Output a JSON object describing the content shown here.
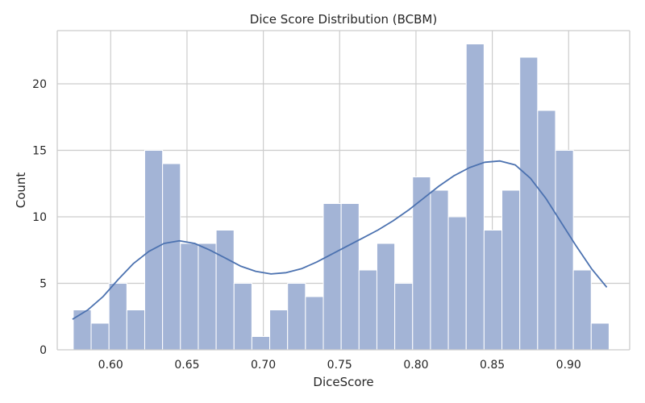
{
  "chart_data": {
    "type": "bar",
    "title": "Dice Score Distribution (BCBM)",
    "xlabel": "DiceScore",
    "ylabel": "Count",
    "xlim": [
      0.565,
      0.94
    ],
    "ylim": [
      0,
      24
    ],
    "xticks": [
      0.6,
      0.65,
      0.7,
      0.75,
      0.8,
      0.85,
      0.9
    ],
    "xtick_labels": [
      "0.60",
      "0.65",
      "0.70",
      "0.75",
      "0.80",
      "0.85",
      "0.90"
    ],
    "yticks": [
      0,
      5,
      10,
      15,
      20
    ],
    "ytick_labels": [
      "0",
      "5",
      "10",
      "15",
      "20"
    ],
    "grid": true,
    "bin_edges": [
      0.5755,
      0.5872,
      0.5989,
      0.6106,
      0.6223,
      0.634,
      0.6457,
      0.6574,
      0.6691,
      0.6808,
      0.6925,
      0.7042,
      0.7159,
      0.7276,
      0.7393,
      0.751,
      0.7627,
      0.7744,
      0.7861,
      0.7978,
      0.8095,
      0.8212,
      0.8329,
      0.8446,
      0.8563,
      0.868,
      0.8797,
      0.8914,
      0.9031,
      0.9148,
      0.9265
    ],
    "counts": [
      3,
      2,
      5,
      3,
      15,
      14,
      8,
      8,
      9,
      5,
      1,
      3,
      5,
      4,
      11,
      11,
      6,
      8,
      5,
      13,
      12,
      10,
      23,
      9,
      12,
      22,
      18,
      15,
      6,
      2
    ],
    "kde": {
      "x": [
        0.575,
        0.585,
        0.595,
        0.605,
        0.615,
        0.625,
        0.635,
        0.645,
        0.655,
        0.665,
        0.675,
        0.685,
        0.695,
        0.705,
        0.715,
        0.725,
        0.735,
        0.745,
        0.755,
        0.765,
        0.775,
        0.785,
        0.795,
        0.805,
        0.815,
        0.825,
        0.835,
        0.845,
        0.855,
        0.865,
        0.875,
        0.885,
        0.895,
        0.905,
        0.915,
        0.925
      ],
      "y": [
        2.3,
        3.0,
        4.0,
        5.3,
        6.5,
        7.4,
        8.0,
        8.2,
        8.0,
        7.5,
        6.9,
        6.3,
        5.9,
        5.7,
        5.8,
        6.1,
        6.6,
        7.2,
        7.8,
        8.4,
        9.0,
        9.7,
        10.5,
        11.4,
        12.3,
        13.1,
        13.7,
        14.1,
        14.2,
        13.9,
        12.9,
        11.4,
        9.6,
        7.8,
        6.1,
        4.7
      ]
    },
    "colors": {
      "bar": "#a3b4d6",
      "bar_edge": "#ffffff",
      "line": "#4c72b0",
      "grid": "#cccccc",
      "spine": "#cccccc",
      "text": "#262626"
    }
  }
}
